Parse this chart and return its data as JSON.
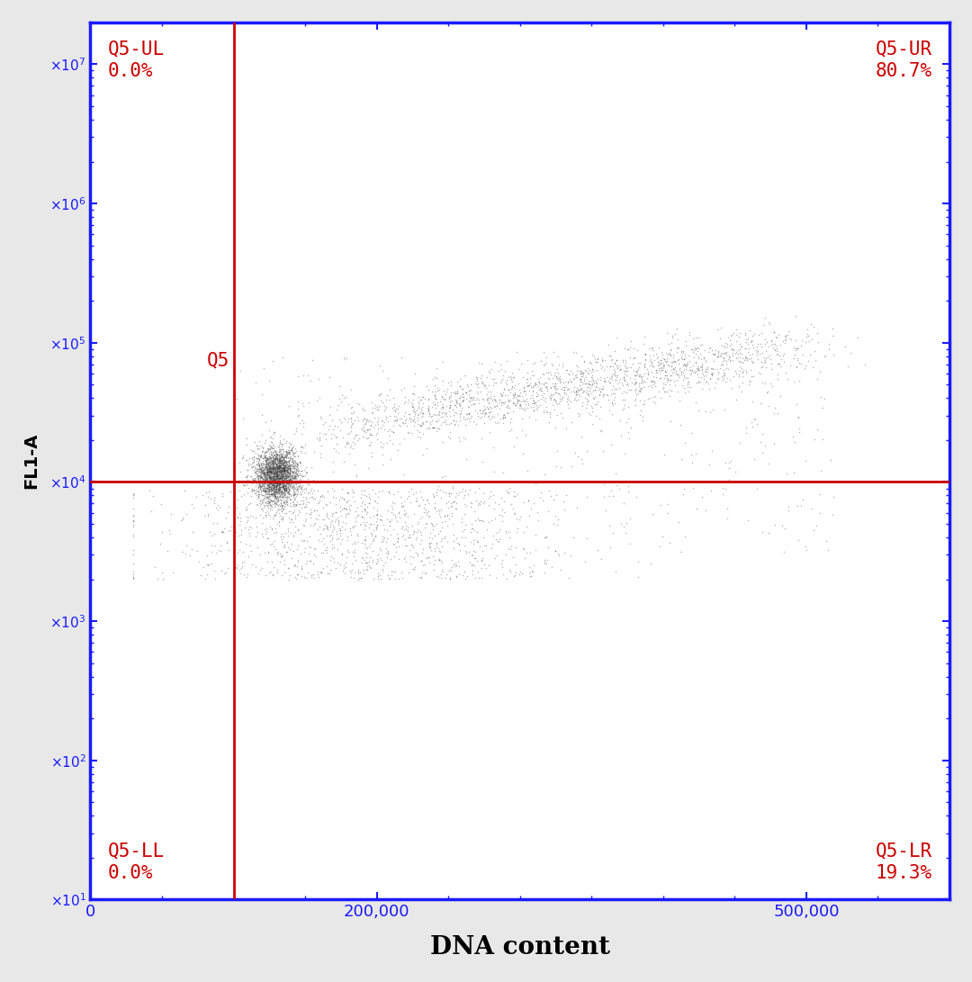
{
  "background_color": "#e8e8e8",
  "plot_bg_color": "#ffffff",
  "border_color": "#1a1aff",
  "gate_line_color": "#cc0000",
  "xlabel": "DNA content",
  "ylabel": "FL1-A",
  "xlabel_fontsize": 20,
  "ylabel_fontsize": 14,
  "tick_color": "#1a1aff",
  "tick_label_color": "#1a1aff",
  "xmin": 0,
  "xmax": 600000,
  "ylog_min": 1,
  "ylog_max": 7.3,
  "xticks": [
    0,
    200000,
    500000
  ],
  "xtick_labels": [
    "0",
    "200,000",
    "500,000"
  ],
  "ytick_exponents": [
    1,
    2,
    3,
    4,
    5,
    6,
    7
  ],
  "gate_x": 100000,
  "gate_y_exp": 4.0,
  "quadrant_label_color": "#cc0000",
  "quadrant_fontsize": 15,
  "q5_fontsize": 15,
  "seed": 42,
  "n_cluster1": 2500,
  "n_cluster2": 1800,
  "n_scatter_below": 1200,
  "n_sparse": 400
}
